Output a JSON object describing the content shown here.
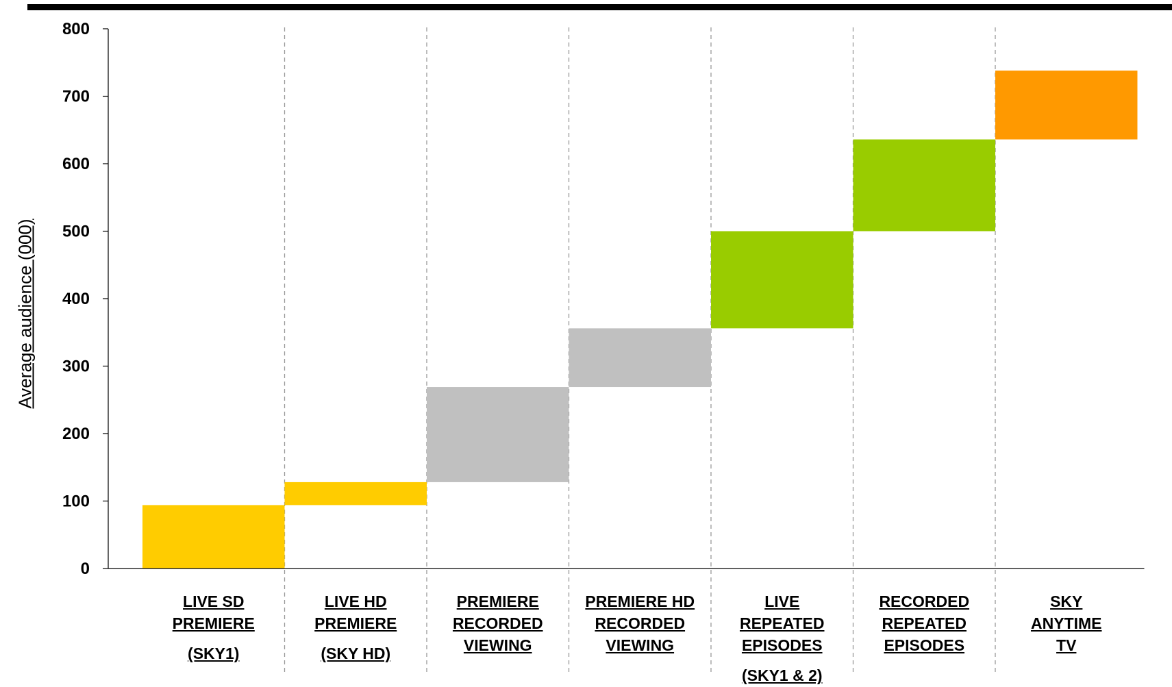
{
  "chart_data": {
    "type": "bar",
    "subtype": "waterfall",
    "title": "",
    "xlabel": "",
    "ylabel": "Average audience (000)",
    "ylim": [
      0,
      800
    ],
    "yticks": [
      "0",
      "100",
      "200",
      "300",
      "400",
      "500",
      "600",
      "700",
      "800"
    ],
    "grid": "vertical dashed separators between categories",
    "legend": "none",
    "categories": [
      {
        "lines": [
          "LIVE SD",
          "PREMIERE"
        ],
        "extra": "(SKY1)"
      },
      {
        "lines": [
          "LIVE HD",
          "PREMIERE"
        ],
        "extra": "(SKY HD)"
      },
      {
        "lines": [
          "PREMIERE",
          "RECORDED",
          "VIEWING"
        ],
        "extra": ""
      },
      {
        "lines": [
          "PREMIERE HD",
          "RECORDED",
          "VIEWING"
        ],
        "extra": ""
      },
      {
        "lines": [
          "LIVE",
          "REPEATED",
          "EPISODES"
        ],
        "extra": "(SKY1 & 2)"
      },
      {
        "lines": [
          "RECORDED",
          "REPEATED",
          "EPISODES"
        ],
        "extra": ""
      },
      {
        "lines": [
          "SKY",
          "ANYTIME",
          "TV"
        ],
        "extra": ""
      }
    ],
    "segments": [
      {
        "start": 0,
        "end": 94,
        "color": "#FFCC00"
      },
      {
        "start": 94,
        "end": 128,
        "color": "#FFCC00"
      },
      {
        "start": 128,
        "end": 269,
        "color": "#C0C0C0"
      },
      {
        "start": 269,
        "end": 356,
        "color": "#C0C0C0"
      },
      {
        "start": 356,
        "end": 500,
        "color": "#99CC00"
      },
      {
        "start": 500,
        "end": 636,
        "color": "#99CC00"
      },
      {
        "start": 636,
        "end": 738,
        "color": "#FF9900"
      }
    ]
  }
}
